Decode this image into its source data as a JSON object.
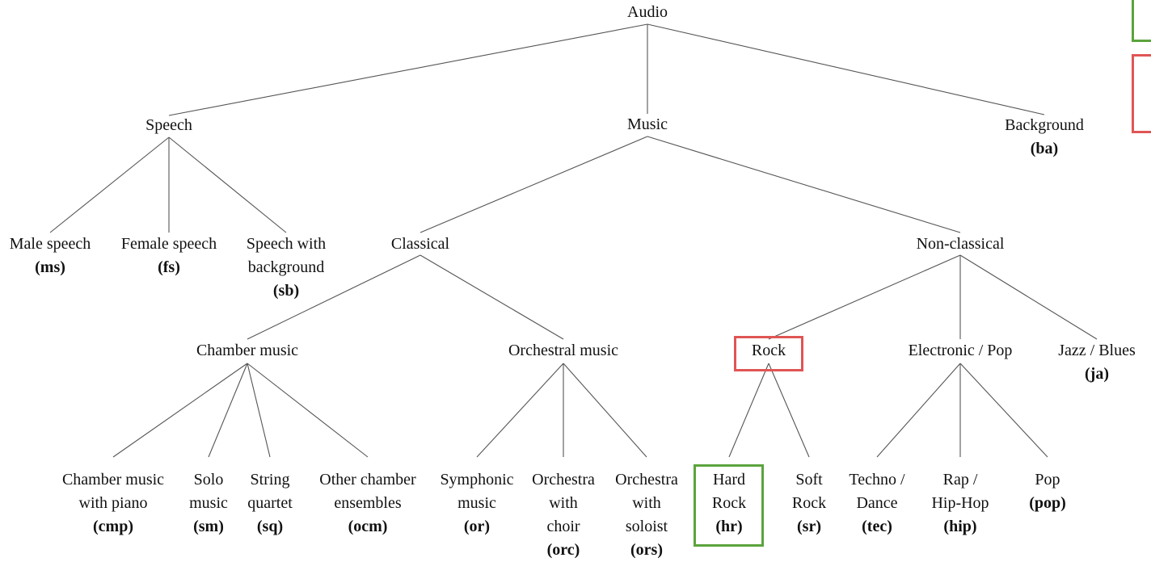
{
  "colors": {
    "highlight_red": "#e05555",
    "highlight_green": "#5aa43c",
    "edge": "#555555"
  },
  "nodes": {
    "audio": {
      "title": [
        "Audio"
      ],
      "code": ""
    },
    "speech": {
      "title": [
        "Speech"
      ],
      "code": ""
    },
    "music": {
      "title": [
        "Music"
      ],
      "code": ""
    },
    "background": {
      "title": [
        "Background"
      ],
      "code": "(ba)"
    },
    "male_speech": {
      "title": [
        "Male speech"
      ],
      "code": "(ms)"
    },
    "female_speech": {
      "title": [
        "Female speech"
      ],
      "code": "(fs)"
    },
    "speech_with_background": {
      "title": [
        "Speech with",
        "background"
      ],
      "code": "(sb)"
    },
    "classical": {
      "title": [
        "Classical"
      ],
      "code": ""
    },
    "non_classical": {
      "title": [
        "Non-classical"
      ],
      "code": ""
    },
    "chamber_music": {
      "title": [
        "Chamber music"
      ],
      "code": ""
    },
    "orchestral_music": {
      "title": [
        "Orchestral music"
      ],
      "code": ""
    },
    "rock": {
      "title": [
        "Rock"
      ],
      "code": ""
    },
    "electronic_pop": {
      "title": [
        "Electronic / Pop"
      ],
      "code": ""
    },
    "jazz_blues": {
      "title": [
        "Jazz / Blues"
      ],
      "code": "(ja)"
    },
    "chamber_with_piano": {
      "title": [
        "Chamber music",
        "with piano"
      ],
      "code": "(cmp)"
    },
    "solo_music": {
      "title": [
        "Solo",
        "music"
      ],
      "code": "(sm)"
    },
    "string_quartet": {
      "title": [
        "String",
        "quartet"
      ],
      "code": "(sq)"
    },
    "other_chamber": {
      "title": [
        "Other chamber",
        "ensembles"
      ],
      "code": "(ocm)"
    },
    "symphonic_music": {
      "title": [
        "Symphonic",
        "music"
      ],
      "code": "(or)"
    },
    "orchestra_choir": {
      "title": [
        "Orchestra",
        "with",
        "choir"
      ],
      "code": "(orc)"
    },
    "orchestra_soloist": {
      "title": [
        "Orchestra",
        "with",
        "soloist"
      ],
      "code": "(ors)"
    },
    "hard_rock": {
      "title": [
        "Hard",
        "Rock"
      ],
      "code": "(hr)"
    },
    "soft_rock": {
      "title": [
        "Soft",
        "Rock"
      ],
      "code": "(sr)"
    },
    "techno_dance": {
      "title": [
        "Techno /",
        "Dance"
      ],
      "code": "(tec)"
    },
    "rap_hiphop": {
      "title": [
        "Rap /",
        "Hip-Hop"
      ],
      "code": "(hip)"
    },
    "pop": {
      "title": [
        "Pop"
      ],
      "code": "(pop)"
    }
  },
  "edges": [
    [
      "audio",
      "speech"
    ],
    [
      "audio",
      "music"
    ],
    [
      "audio",
      "background"
    ],
    [
      "speech",
      "male_speech"
    ],
    [
      "speech",
      "female_speech"
    ],
    [
      "speech",
      "speech_with_background"
    ],
    [
      "music",
      "classical"
    ],
    [
      "music",
      "non_classical"
    ],
    [
      "classical",
      "chamber_music"
    ],
    [
      "classical",
      "orchestral_music"
    ],
    [
      "non_classical",
      "rock"
    ],
    [
      "non_classical",
      "electronic_pop"
    ],
    [
      "non_classical",
      "jazz_blues"
    ],
    [
      "chamber_music",
      "chamber_with_piano"
    ],
    [
      "chamber_music",
      "solo_music"
    ],
    [
      "chamber_music",
      "string_quartet"
    ],
    [
      "chamber_music",
      "other_chamber"
    ],
    [
      "orchestral_music",
      "symphonic_music"
    ],
    [
      "orchestral_music",
      "orchestra_choir"
    ],
    [
      "orchestral_music",
      "orchestra_soloist"
    ],
    [
      "rock",
      "hard_rock"
    ],
    [
      "rock",
      "soft_rock"
    ],
    [
      "electronic_pop",
      "techno_dance"
    ],
    [
      "electronic_pop",
      "rap_hiphop"
    ],
    [
      "electronic_pop",
      "pop"
    ]
  ],
  "highlights": [
    {
      "node": "rock",
      "color": "red"
    },
    {
      "node": "hard_rock",
      "color": "green"
    }
  ]
}
